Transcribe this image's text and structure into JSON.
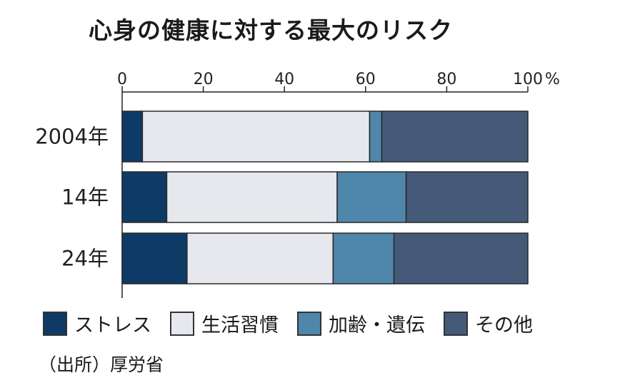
{
  "title": "心身の健康に対する最大のリスク",
  "source": "（出所）厚労省",
  "chart_data": {
    "type": "bar",
    "orientation": "horizontal",
    "stacked": true,
    "title": "心身の健康に対する最大のリスク",
    "x_unit": "%",
    "xlim": [
      0,
      100
    ],
    "x_ticks": [
      0,
      20,
      40,
      60,
      80,
      100
    ],
    "categories": [
      "2004年",
      "14年",
      "24年"
    ],
    "series": [
      {
        "name": "ストレス",
        "color": "#0e3a66",
        "values": [
          5,
          11,
          16
        ]
      },
      {
        "name": "生活習慣",
        "color": "#e7e8ee",
        "values": [
          56,
          42,
          36
        ]
      },
      {
        "name": "加齢・遺伝",
        "color": "#4f86ab",
        "values": [
          3,
          17,
          15
        ]
      },
      {
        "name": "その他",
        "color": "#445a78",
        "values": [
          36,
          30,
          33
        ]
      }
    ],
    "legend_position": "bottom"
  }
}
